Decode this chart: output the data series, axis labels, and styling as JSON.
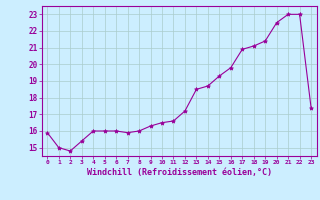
{
  "x": [
    0,
    1,
    2,
    3,
    4,
    5,
    6,
    7,
    8,
    9,
    10,
    11,
    12,
    13,
    14,
    15,
    16,
    17,
    18,
    19,
    20,
    21,
    22,
    23
  ],
  "y": [
    15.9,
    15.0,
    14.8,
    15.4,
    16.0,
    16.0,
    16.0,
    15.9,
    16.0,
    16.3,
    16.5,
    16.6,
    17.2,
    18.5,
    18.7,
    19.3,
    19.8,
    20.9,
    21.1,
    21.4,
    22.5,
    23.0,
    23.0,
    17.4
  ],
  "line_color": "#990099",
  "marker": "*",
  "marker_size": 3,
  "bg_color": "#cceeff",
  "grid_color": "#aacccc",
  "xlabel": "Windchill (Refroidissement éolien,°C)",
  "xlabel_color": "#990099",
  "tick_color": "#990099",
  "xlim": [
    -0.5,
    23.5
  ],
  "ylim": [
    14.5,
    23.5
  ],
  "yticks": [
    15,
    16,
    17,
    18,
    19,
    20,
    21,
    22,
    23
  ],
  "xticks": [
    0,
    1,
    2,
    3,
    4,
    5,
    6,
    7,
    8,
    9,
    10,
    11,
    12,
    13,
    14,
    15,
    16,
    17,
    18,
    19,
    20,
    21,
    22,
    23
  ]
}
